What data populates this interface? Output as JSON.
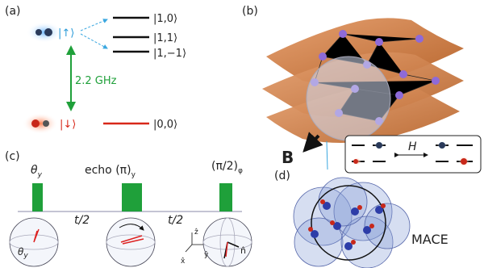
{
  "panel_a": {
    "label": "(a)",
    "up": "|↑⟩",
    "down": "|↓⟩",
    "splitting": "2.2 GHz",
    "levels": [
      "|1,0⟩",
      "|1,1⟩",
      "|1,−1⟩",
      "|0,0⟩"
    ]
  },
  "panel_b": {
    "label": "(b)",
    "field": "B",
    "hamiltonian": "H"
  },
  "panel_c": {
    "label": "(c)",
    "pulses": [
      {
        "main": "θ",
        "sub": "y"
      },
      {
        "main": "echo (π)",
        "sub": "y"
      },
      {
        "main": "(π/2)",
        "sub": "φ"
      }
    ],
    "intervals": [
      "t/2",
      "t/2"
    ],
    "sphere_angle": {
      "main": "θ",
      "sub": "y"
    },
    "axes": [
      "x̂",
      "ŷ",
      "ẑ"
    ],
    "vector": "n̂"
  },
  "panel_d": {
    "label": "(d)",
    "name": "MACE"
  }
}
